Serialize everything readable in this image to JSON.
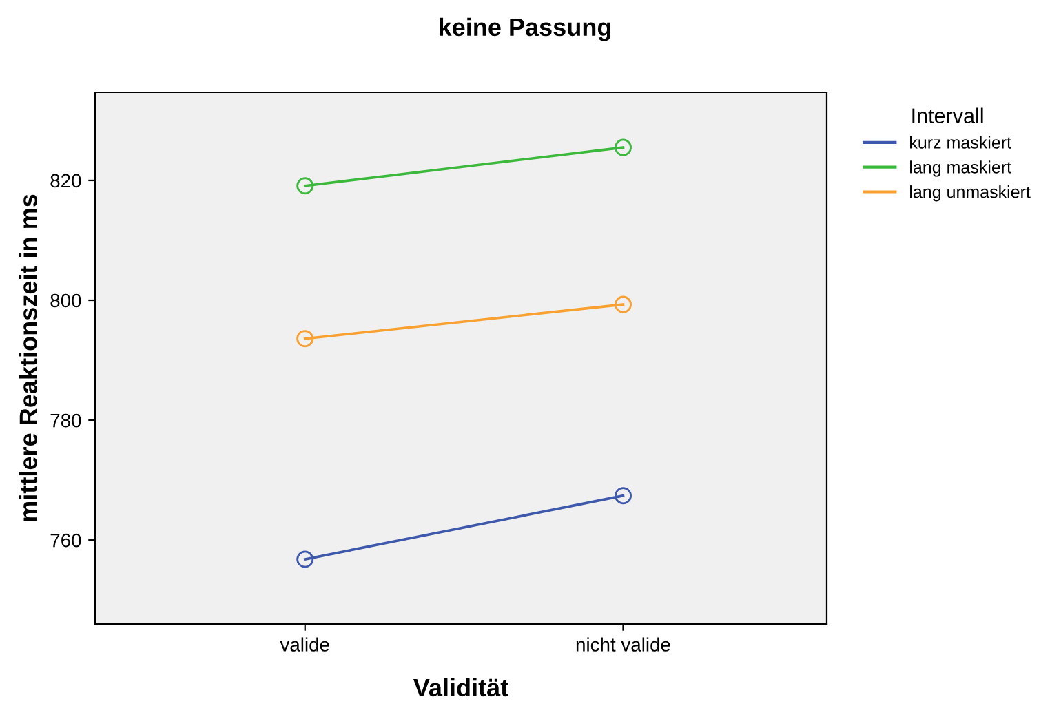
{
  "chart_data": {
    "type": "line",
    "title": "keine Passung",
    "xlabel": "Validität",
    "ylabel": "mittlere Reaktionszeit in ms",
    "legend_title": "Intervall",
    "categories": [
      "valide",
      "nicht valide"
    ],
    "series": [
      {
        "name": "kurz maskiert",
        "color": "#3e58ac",
        "values": [
          756.8,
          767.4
        ]
      },
      {
        "name": "lang maskiert",
        "color": "#3cb83c",
        "values": [
          819.1,
          825.5
        ]
      },
      {
        "name": "lang unmaskiert",
        "color": "#f8a030",
        "values": [
          793.6,
          799.3
        ]
      }
    ],
    "ylim": [
      746,
      834.7
    ],
    "yticks": [
      760,
      780,
      800,
      820
    ],
    "grid": false,
    "legend": "right",
    "marker": "circle",
    "line_style": "solid"
  }
}
